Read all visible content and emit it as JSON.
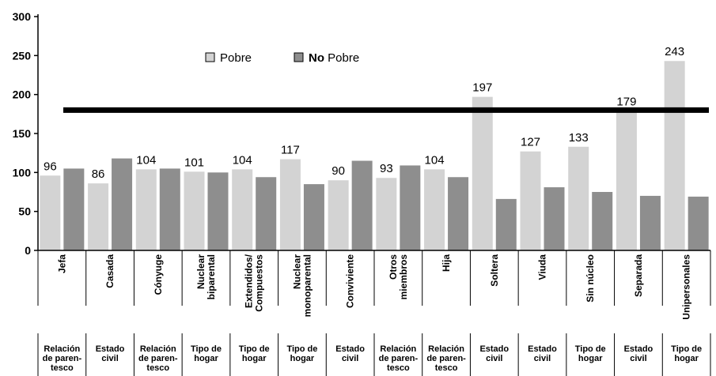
{
  "chart_data": {
    "type": "bar",
    "ylim": [
      0,
      300
    ],
    "yticks": [
      0,
      50,
      100,
      150,
      200,
      250,
      300
    ],
    "grid": false,
    "legend_position": "top-center",
    "reference_line": 180,
    "categories": [
      {
        "label": [
          "Jefa"
        ],
        "group": [
          "Relación",
          "de paren-",
          "tesco"
        ]
      },
      {
        "label": [
          "Casada"
        ],
        "group": [
          "Estado",
          "civil"
        ]
      },
      {
        "label": [
          "Cónyuge"
        ],
        "group": [
          "Relación",
          "de paren-",
          "tesco"
        ]
      },
      {
        "label": [
          "Nuclear",
          "biparental"
        ],
        "group": [
          "Tipo de",
          "hogar"
        ]
      },
      {
        "label": [
          "Extendidos/",
          "Compuestos"
        ],
        "group": [
          "Tipo de",
          "hogar"
        ]
      },
      {
        "label": [
          "Nuclear",
          "monoparental"
        ],
        "group": [
          "Tipo de",
          "hogar"
        ]
      },
      {
        "label": [
          "Conviviente"
        ],
        "group": [
          "Estado",
          "civil"
        ]
      },
      {
        "label": [
          "Otros",
          "miembros"
        ],
        "group": [
          "Relación",
          "de paren-",
          "tesco"
        ]
      },
      {
        "label": [
          "Hija"
        ],
        "group": [
          "Relación",
          "de paren-",
          "tesco"
        ]
      },
      {
        "label": [
          "Soltera"
        ],
        "group": [
          "Estado",
          "civil"
        ]
      },
      {
        "label": [
          "Viuda"
        ],
        "group": [
          "Estado",
          "civil"
        ]
      },
      {
        "label": [
          "Sin núcleo"
        ],
        "group": [
          "Tipo de",
          "hogar"
        ]
      },
      {
        "label": [
          "Separada"
        ],
        "group": [
          "Estado",
          "civil"
        ]
      },
      {
        "label": [
          "Unipersonales"
        ],
        "group": [
          "Tipo de",
          "hogar"
        ]
      }
    ],
    "series": [
      {
        "name": "Pobre",
        "color": "#d3d3d3",
        "values": [
          96,
          86,
          104,
          101,
          104,
          117,
          90,
          93,
          104,
          197,
          127,
          133,
          179,
          243
        ],
        "labels": [
          "96",
          "86",
          "104",
          "101",
          "104",
          "117",
          "90",
          "93",
          "104",
          "197",
          "127",
          "133",
          "179",
          "243"
        ]
      },
      {
        "name_bold": "No",
        "name_rest": " Pobre",
        "color": "#8e8e8e",
        "values": [
          105,
          118,
          105,
          100,
          94,
          85,
          115,
          109,
          94,
          66,
          81,
          75,
          70,
          69
        ]
      }
    ]
  }
}
